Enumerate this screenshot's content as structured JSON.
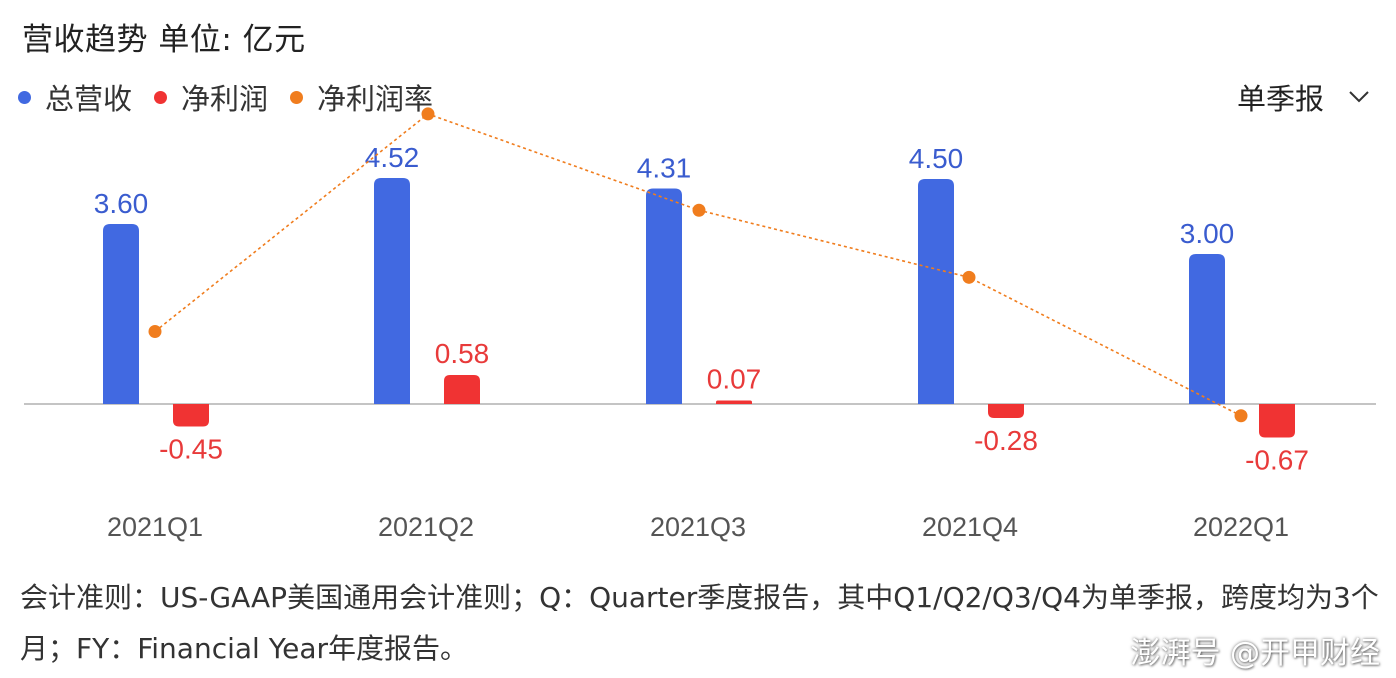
{
  "header": {
    "title": "营收趋势  单位: 亿元",
    "period_selector": "单季报"
  },
  "colors": {
    "revenue": "#4169E1",
    "net_profit": "#F03333",
    "margin": "#F07D1E",
    "axis": "#B0B0B0",
    "label_revenue": "#3A5CCF",
    "label_profit": "#E83A3A"
  },
  "chart_data": {
    "type": "bar",
    "categories": [
      "2021Q1",
      "2021Q2",
      "2021Q3",
      "2021Q4",
      "2022Q1"
    ],
    "series": [
      {
        "name": "总营收",
        "type": "bar",
        "values": [
          3.6,
          4.52,
          4.31,
          4.5,
          3.0
        ],
        "labels": [
          "3.60",
          "4.52",
          "4.31",
          "4.50",
          "3.00"
        ]
      },
      {
        "name": "净利润",
        "type": "bar",
        "values": [
          -0.45,
          0.58,
          0.07,
          -0.28,
          -0.67
        ],
        "labels": [
          "-0.45",
          "0.58",
          "0.07",
          "-0.28",
          "-0.67"
        ]
      },
      {
        "name": "净利润率",
        "type": "line",
        "axis": "secondary",
        "values": [
          -12.5,
          12.8,
          1.6,
          -6.2,
          -22.3
        ]
      }
    ],
    "ylim": [
      -1.2,
      5.0
    ],
    "y2lim": [
      -40,
      20
    ],
    "grid": false,
    "legend": "top-left"
  },
  "footnote": "会计准则：US-GAAP美国通用会计准则；Q：Quarter季度报告，其中Q1/Q2/Q3/Q4为单季报，跨度均为3个月；FY：Financial Year年度报告。",
  "watermark": "澎湃号 @开甲财经"
}
